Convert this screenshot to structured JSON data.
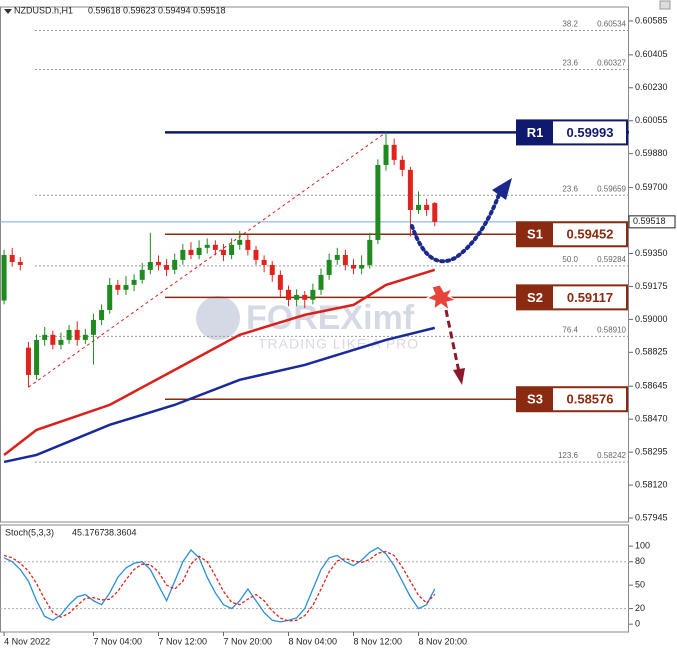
{
  "chart_data": [
    {
      "type": "candlestick",
      "title": "NZDUSD.h,H1",
      "open": [
        0.591,
        0.59342,
        0.59305,
        0.5885,
        0.58705,
        0.58891,
        0.58918,
        0.58865,
        0.58891,
        0.58944,
        0.58891,
        0.58918,
        0.58997,
        0.5905,
        0.59183,
        0.59157,
        0.59183,
        0.5921,
        0.59263,
        0.59305,
        0.59289,
        0.59263,
        0.59316,
        0.59369,
        0.59342,
        0.5938,
        0.59396,
        0.59369,
        0.59342,
        0.59396,
        0.59422,
        0.59369,
        0.59316,
        0.59289,
        0.59236,
        0.59157,
        0.59104,
        0.5913,
        0.59104,
        0.59157,
        0.59236,
        0.59316,
        0.59342,
        0.59289,
        0.5927,
        0.59289,
        0.59422,
        0.5982,
        0.59927,
        0.59847,
        0.59794,
        0.59581,
        0.59608,
        0.59618
      ],
      "high": [
        0.5937,
        0.5938,
        0.5933,
        0.5888,
        0.5892,
        0.5896,
        0.5894,
        0.5893,
        0.5897,
        0.5899,
        0.5895,
        0.5903,
        0.5908,
        0.5922,
        0.5921,
        0.5923,
        0.5924,
        0.593,
        0.5946,
        0.5934,
        0.5932,
        0.5935,
        0.594,
        0.5941,
        0.5942,
        0.5943,
        0.5942,
        0.594,
        0.5943,
        0.5947,
        0.5945,
        0.5939,
        0.5934,
        0.5931,
        0.5926,
        0.5918,
        0.5916,
        0.5915,
        0.5919,
        0.5927,
        0.5935,
        0.5938,
        0.5937,
        0.5932,
        0.5934,
        0.5946,
        0.5985,
        0.59993,
        0.5996,
        0.5987,
        0.5981,
        0.5968,
        0.5964,
        0.59623
      ],
      "low": [
        0.5908,
        0.5928,
        0.5926,
        0.5864,
        0.5868,
        0.5886,
        0.5884,
        0.5884,
        0.5887,
        0.5886,
        0.5887,
        0.5876,
        0.5897,
        0.5903,
        0.5913,
        0.5913,
        0.5915,
        0.5919,
        0.5924,
        0.5926,
        0.5923,
        0.5924,
        0.5929,
        0.5932,
        0.5932,
        0.5935,
        0.5934,
        0.5931,
        0.5932,
        0.5937,
        0.5934,
        0.5929,
        0.5925,
        0.592,
        0.5912,
        0.5907,
        0.5907,
        0.5906,
        0.5908,
        0.5913,
        0.5921,
        0.5929,
        0.5926,
        0.5924,
        0.5924,
        0.5927,
        0.594,
        0.5979,
        0.5982,
        0.5976,
        0.5944,
        0.5956,
        0.5955,
        0.59494
      ],
      "close": [
        0.59342,
        0.59305,
        0.59289,
        0.58705,
        0.58891,
        0.58918,
        0.58865,
        0.58891,
        0.58944,
        0.58891,
        0.58918,
        0.58997,
        0.5905,
        0.59183,
        0.59157,
        0.59183,
        0.5921,
        0.59263,
        0.59305,
        0.59289,
        0.59263,
        0.59316,
        0.59369,
        0.59342,
        0.5938,
        0.59396,
        0.59369,
        0.59342,
        0.59396,
        0.59422,
        0.59369,
        0.59316,
        0.59289,
        0.59236,
        0.59157,
        0.59104,
        0.5913,
        0.59104,
        0.59157,
        0.59236,
        0.59316,
        0.59342,
        0.59289,
        0.5927,
        0.59289,
        0.59422,
        0.5982,
        0.59927,
        0.59847,
        0.59794,
        0.59581,
        0.59608,
        0.59581,
        0.59518
      ],
      "up_color": "#1f8a1f",
      "down_color": "#e0231c",
      "xlim": [
        -0.5,
        76.9
      ],
      "xticks": [
        {
          "value": 0,
          "label": "4 Nov 2022"
        },
        {
          "value": 11,
          "label": "7 Nov 04:00"
        },
        {
          "value": 19,
          "label": "7 Nov 12:00"
        },
        {
          "value": 27,
          "label": "7 Nov 20:00"
        },
        {
          "value": 35,
          "label": "8 Nov 04:00"
        },
        {
          "value": 43,
          "label": "8 Nov 12:00"
        },
        {
          "value": 51,
          "label": "8 Nov 20:00"
        }
      ],
      "ylim": [
        0.57924,
        0.60659
      ],
      "yticks": [
        0.60585,
        0.60405,
        {
          "value": 0.6023,
          "label": "0.60230"
        },
        0.60055,
        {
          "value": 0.5988,
          "label": "0.59880"
        },
        {
          "value": 0.597,
          "label": "0.59700"
        },
        {
          "value": 0.5935,
          "label": "0.59350"
        },
        0.59175,
        {
          "value": 0.59,
          "label": "0.59000"
        },
        0.58825,
        0.58645,
        {
          "value": 0.5847,
          "label": "0.58470"
        },
        0.58295,
        {
          "value": 0.5812,
          "label": "0.58120"
        },
        0.57945
      ],
      "overlays": [
        {
          "color": "#d9201a",
          "x": [
            0,
            4,
            13,
            21,
            29,
            37,
            43,
            47,
            53
          ],
          "values": [
            0.5828,
            0.58413,
            0.58546,
            0.58732,
            0.58918,
            0.59024,
            0.59077,
            0.59183,
            0.59263
          ]
        },
        {
          "color": "#1a2a9c",
          "x": [
            0,
            4,
            13,
            21,
            29,
            37,
            43,
            47,
            53
          ],
          "values": [
            0.58243,
            0.5828,
            0.5844,
            0.58546,
            0.58679,
            0.58758,
            0.58838,
            0.58891,
            0.58955
          ]
        }
      ],
      "fib": [
        {
          "level": "38.2",
          "value": 0.60534,
          "label": "0.60534"
        },
        {
          "level": "23.6",
          "value": 0.60327,
          "label": "0.60327"
        },
        {
          "level": "23.6",
          "value": 0.59659,
          "label": "0.59659"
        },
        {
          "level": "50.0",
          "value": 0.59284,
          "label": "0.59284"
        },
        {
          "level": "76.4",
          "value": 0.5891,
          "label": "0.58910"
        },
        {
          "level": "123.6",
          "value": 0.58242,
          "label": "0.58242"
        }
      ],
      "levels": [
        {
          "name": "R1",
          "value": 0.59993,
          "color": "#0f1a6e"
        },
        {
          "name": "S1",
          "value": 0.59452,
          "color": "#8a2a10"
        },
        {
          "name": "S2",
          "value": 0.59117,
          "color": "#8a2a10"
        },
        {
          "name": "S3",
          "value": 0.58576,
          "color": "#8a2a10"
        }
      ],
      "watermark": {
        "brand": "FOREXimf",
        "slogan": "TRADING LIKE A PRO"
      }
    },
    {
      "type": "line",
      "title": "Stoch(5,3,3)",
      "ylim": [
        -10,
        127
      ],
      "yticks": [
        100,
        80,
        50,
        20,
        0
      ],
      "levels": [
        80,
        20
      ],
      "series": [
        {
          "color": "#2a8fd8",
          "values": [
            85,
            80,
            70,
            55,
            30,
            10,
            5,
            12,
            25,
            35,
            38,
            30,
            25,
            40,
            60,
            72,
            78,
            80,
            70,
            50,
            30,
            55,
            80,
            95,
            85,
            60,
            40,
            25,
            20,
            30,
            45,
            30,
            15,
            5,
            3,
            5,
            8,
            20,
            45,
            70,
            85,
            88,
            80,
            75,
            82,
            92,
            98,
            90,
            75,
            55,
            35,
            20,
            25,
            45.1767
          ]
        },
        {
          "color": "#e0231c",
          "dashed": true,
          "values": [
            88,
            85,
            78,
            68,
            52,
            32,
            15,
            9,
            14,
            24,
            33,
            34,
            31,
            32,
            42,
            57,
            70,
            77,
            76,
            67,
            50,
            45,
            55,
            77,
            87,
            80,
            62,
            42,
            28,
            25,
            32,
            38,
            30,
            17,
            8,
            4,
            5,
            11,
            24,
            45,
            67,
            81,
            84,
            81,
            79,
            83,
            91,
            93,
            88,
            73,
            55,
            37,
            27,
            38.3604
          ]
        }
      ]
    }
  ]
}
